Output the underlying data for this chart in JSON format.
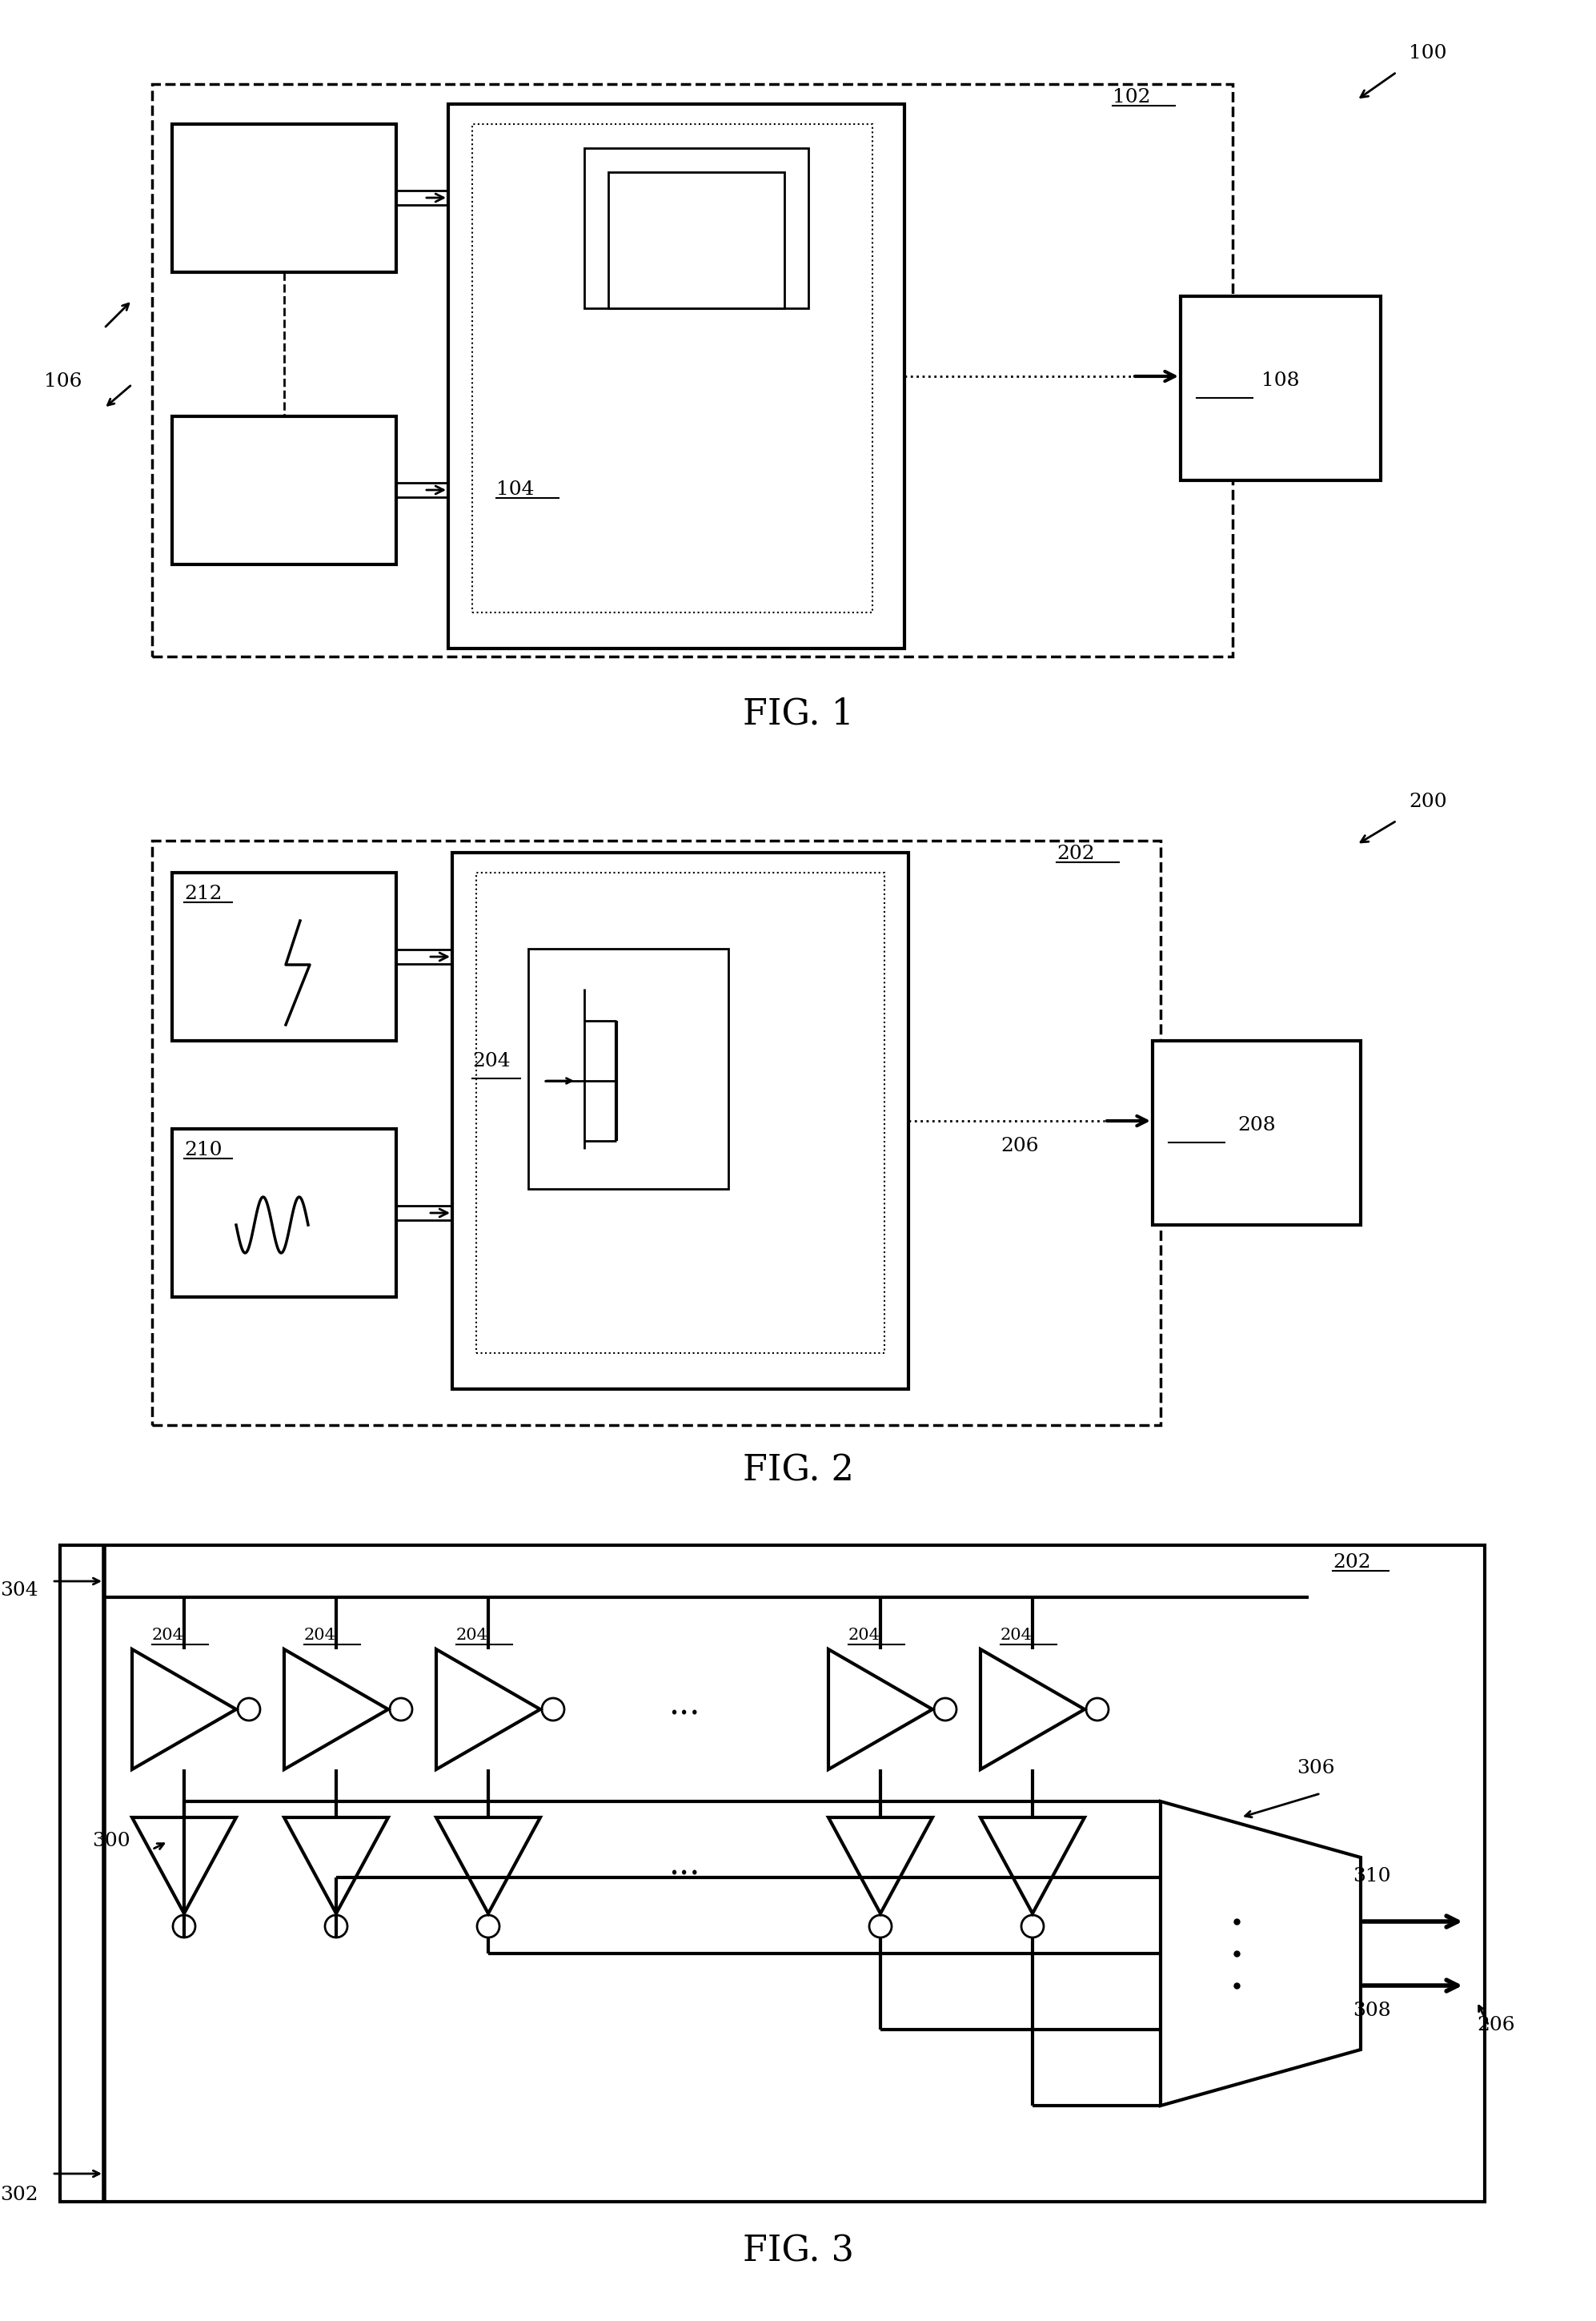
{
  "fig_width": 19.94,
  "fig_height": 28.99,
  "bg_color": "#ffffff",
  "line_color": "#000000",
  "fig1_label": "FIG. 1",
  "fig2_label": "FIG. 2",
  "fig3_label": "FIG. 3",
  "label_100": "100",
  "label_102": "102",
  "label_104": "104",
  "label_106": "106",
  "label_108": "108",
  "label_200": "200",
  "label_202": "202",
  "label_204": "204",
  "label_206": "206",
  "label_208": "208",
  "label_210": "210",
  "label_212": "212",
  "label_300": "300",
  "label_302": "302",
  "label_304": "304",
  "label_306": "306",
  "label_308": "308",
  "label_310": "310",
  "font_size_fig": 32,
  "font_size_label": 18,
  "font_size_small": 15
}
